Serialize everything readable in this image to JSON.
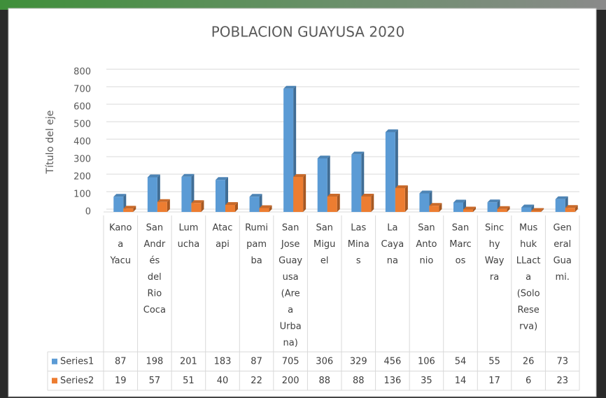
{
  "chart_data": {
    "type": "bar3d",
    "title": "POBLACION GUAYUSA 2020",
    "y_axis_title": "Título del eje",
    "categories": [
      [
        "Kano",
        "a",
        "Yacu"
      ],
      [
        "San",
        "Andr",
        "és",
        "del",
        "Rio",
        "Coca"
      ],
      [
        "Lum",
        "ucha"
      ],
      [
        "Atac",
        "api"
      ],
      [
        "Rumi",
        "pam",
        "ba"
      ],
      [
        "San",
        "Jose",
        "Guay",
        "usa",
        "(Are",
        "a",
        "Urba",
        "na)"
      ],
      [
        "San",
        "Migu",
        "el"
      ],
      [
        "Las",
        "Mina",
        "s"
      ],
      [
        "La",
        "Caya",
        "na"
      ],
      [
        "San",
        "Anto",
        "nio"
      ],
      [
        "San",
        "Marc",
        "os"
      ],
      [
        "Sinc",
        "hy",
        "Way",
        "ra"
      ],
      [
        "Mus",
        "huk",
        "LLact",
        "a",
        "(Solo",
        "Rese",
        "rva)"
      ],
      [
        "Gen",
        "eral",
        "Gua",
        "mi."
      ]
    ],
    "series": [
      {
        "name": "Series1",
        "color": "#5b9bd5",
        "values": [
          87,
          198,
          201,
          183,
          87,
          705,
          306,
          329,
          456,
          106,
          54,
          55,
          26,
          73
        ]
      },
      {
        "name": "Series2",
        "color": "#ed7d31",
        "values": [
          19,
          57,
          51,
          40,
          22,
          200,
          88,
          88,
          136,
          35,
          14,
          17,
          6,
          23
        ]
      }
    ],
    "ylim": [
      0,
      800
    ],
    "yticks": [
      0,
      100,
      200,
      300,
      400,
      500,
      600,
      700,
      800
    ],
    "grid": true
  }
}
